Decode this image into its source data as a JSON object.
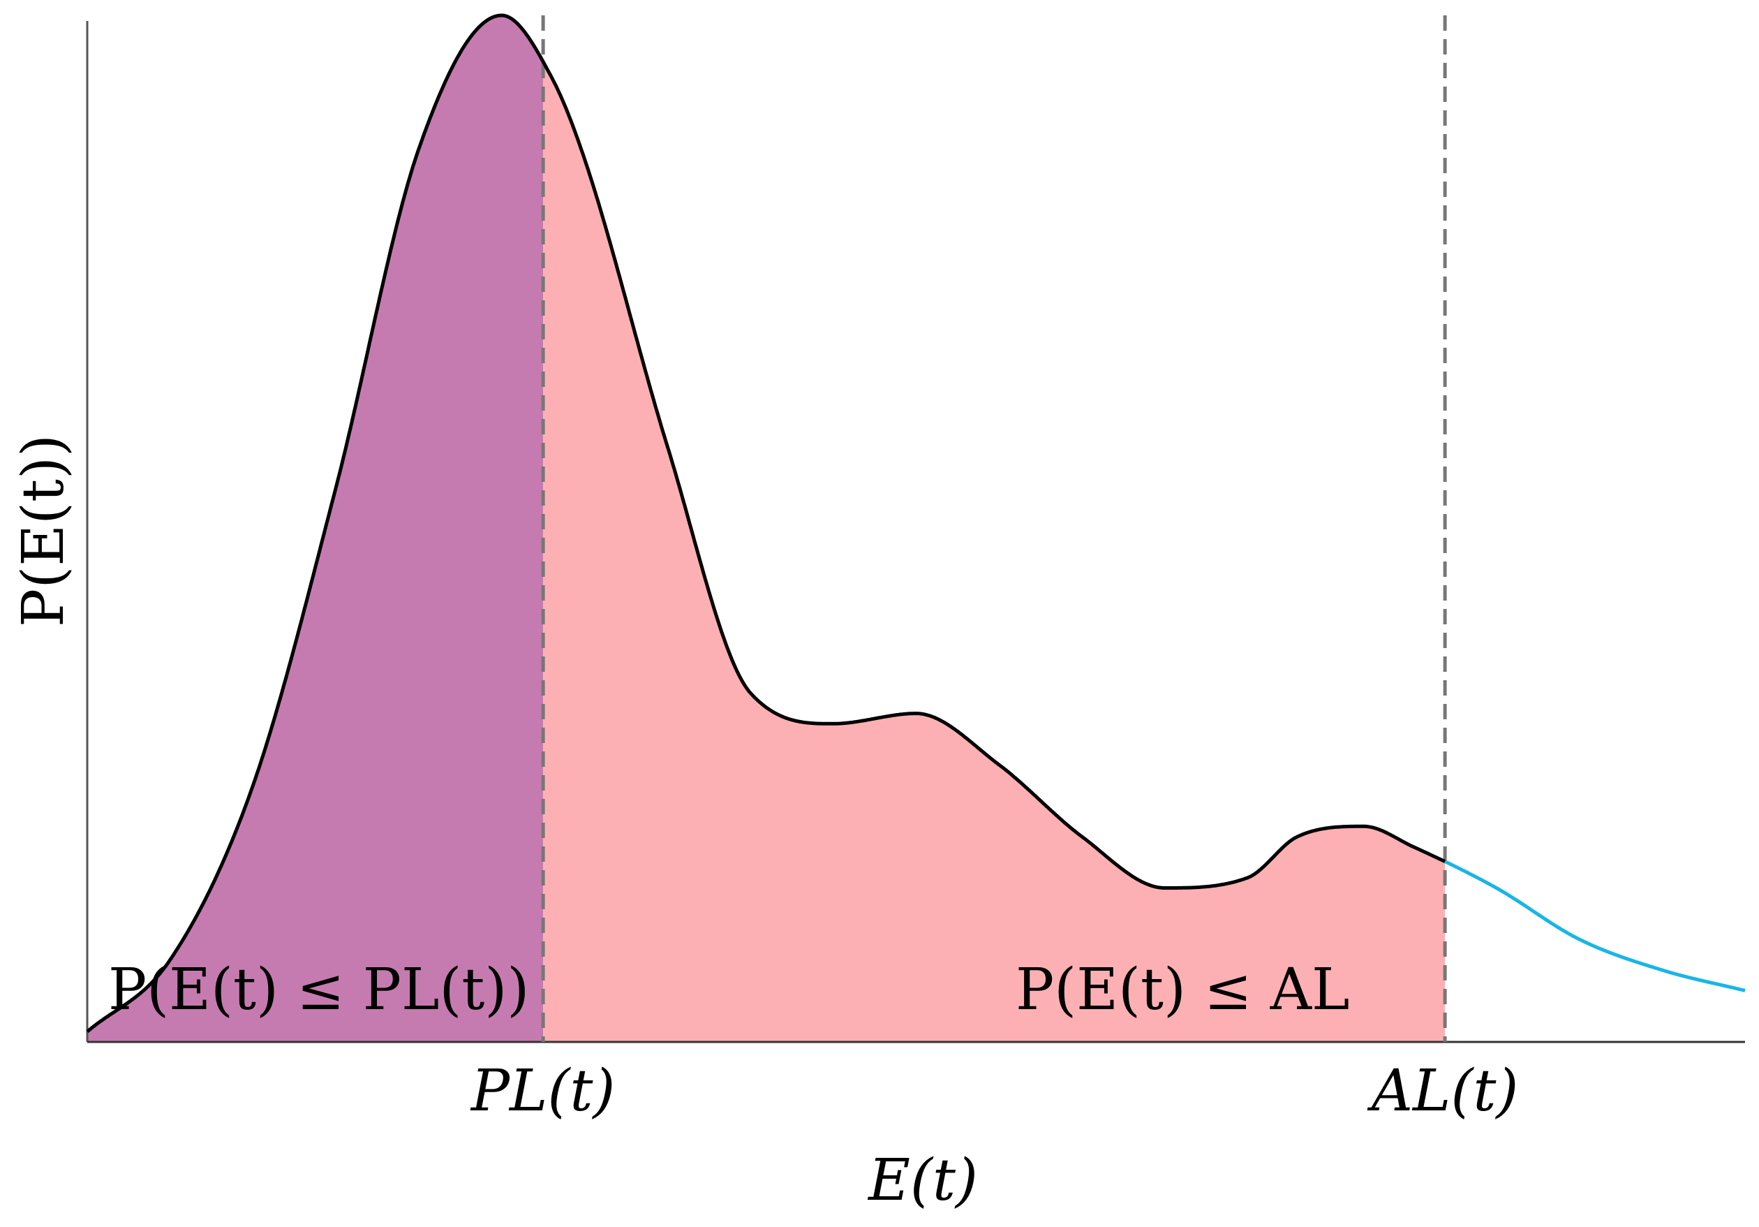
{
  "chart_data": {
    "type": "area",
    "title": "",
    "xlabel": "E(t)",
    "ylabel": "P(E(t))",
    "grid": false,
    "x_tick_labels": [
      "PL(t)",
      "AL(t)"
    ],
    "curve": {
      "x": [
        0,
        5,
        10,
        15,
        20,
        25,
        28,
        30,
        35,
        40,
        45,
        50,
        55,
        60,
        65,
        70,
        73,
        77,
        80,
        85,
        90,
        95,
        100
      ],
      "y": [
        1,
        8,
        25,
        54,
        87,
        100,
        94,
        86,
        58,
        34,
        31,
        32,
        27,
        20,
        15,
        16,
        20,
        21,
        19,
        15,
        10,
        7,
        5
      ]
    },
    "vertical_lines": [
      {
        "label": "PL(t)",
        "x": 27.5,
        "style": "dashed"
      },
      {
        "label": "AL(t)",
        "x": 81.9,
        "style": "dashed"
      }
    ],
    "shaded_regions": [
      {
        "label": "P(E(t) ≤ PL(t))",
        "x_from": 0,
        "x_to": 27.5,
        "color": "#c67bb0"
      },
      {
        "label": "P(E(t) ≤ AL",
        "x_from": 27.5,
        "x_to": 81.9,
        "color": "#fdb0b3"
      }
    ],
    "tail": {
      "x_from": 81.9,
      "x_to": 100,
      "color": "#19b5e7"
    },
    "xlim": [
      0,
      100
    ],
    "ylim": [
      0,
      100
    ]
  }
}
